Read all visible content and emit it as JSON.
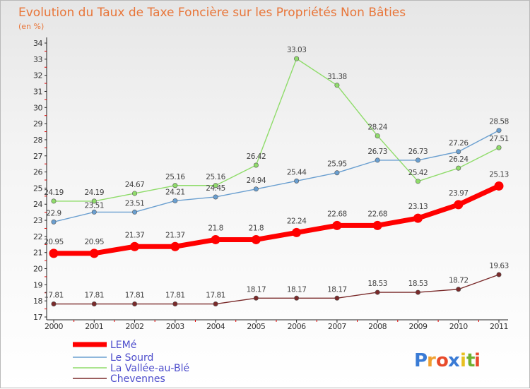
{
  "chart_data": {
    "type": "line",
    "title": "Evolution du Taux de Taxe Foncière sur les Propriétés Non Bâties",
    "subtitle": "(en %)",
    "x": [
      "2000",
      "2001",
      "2002",
      "2003",
      "2004",
      "2005",
      "2006",
      "2007",
      "2008",
      "2009",
      "2010",
      "2011"
    ],
    "ylim": [
      17,
      34
    ],
    "yticks": [
      17,
      18,
      19,
      20,
      21,
      22,
      23,
      24,
      25,
      26,
      27,
      28,
      29,
      30,
      31,
      32,
      33,
      34
    ],
    "legend_position": "bottom-left",
    "series": [
      {
        "name": "LEMé",
        "color": "#ff0000",
        "values": [
          20.95,
          20.95,
          21.37,
          21.37,
          21.8,
          21.8,
          22.24,
          22.68,
          22.68,
          23.13,
          23.97,
          25.13
        ],
        "labels": [
          "20.95",
          "20.95",
          "21.37",
          "21.37",
          "21.8",
          "21.8",
          "22.24",
          "22.68",
          "22.68",
          "23.13",
          "23.97",
          "25.13"
        ]
      },
      {
        "name": "Le Sourd",
        "color": "#6a9fd0",
        "values": [
          22.9,
          23.51,
          23.51,
          24.21,
          24.45,
          24.94,
          25.44,
          25.95,
          26.73,
          26.73,
          27.26,
          28.58
        ],
        "labels": [
          "22.9",
          "23.51",
          "23.51",
          "24.21",
          "24.45",
          "24.94",
          "25.44",
          "25.95",
          "26.73",
          "26.73",
          "27.26",
          "28.58"
        ]
      },
      {
        "name": "La Vallée-au-Blé",
        "color": "#8fdc6a",
        "values": [
          24.19,
          24.19,
          24.67,
          25.16,
          25.16,
          26.42,
          33.03,
          31.38,
          28.24,
          25.42,
          26.24,
          27.51
        ],
        "labels": [
          "24.19",
          "24.19",
          "24.67",
          "25.16",
          "25.16",
          "26.42",
          "33.03",
          "31.38",
          "28.24",
          "25.42",
          "26.24",
          "27.51"
        ]
      },
      {
        "name": "Chevennes",
        "color": "#7a2a2a",
        "values": [
          17.81,
          17.81,
          17.81,
          17.81,
          17.81,
          18.17,
          18.17,
          18.17,
          18.53,
          18.53,
          18.72,
          19.63
        ],
        "labels": [
          "17.81",
          "17.81",
          "17.81",
          "17.81",
          "17.81",
          "18.17",
          "18.17",
          "18.17",
          "18.53",
          "18.53",
          "18.72",
          "19.63"
        ]
      }
    ]
  },
  "logo": {
    "text": "Proxiti",
    "letters": [
      "P",
      "r",
      "o",
      "x",
      "i",
      "t",
      "i"
    ],
    "colors": [
      "#3a7bd5",
      "#f0a030",
      "#e84a2a",
      "#3a7bd5",
      "#e8c020",
      "#70b030",
      "#e84a2a"
    ]
  }
}
